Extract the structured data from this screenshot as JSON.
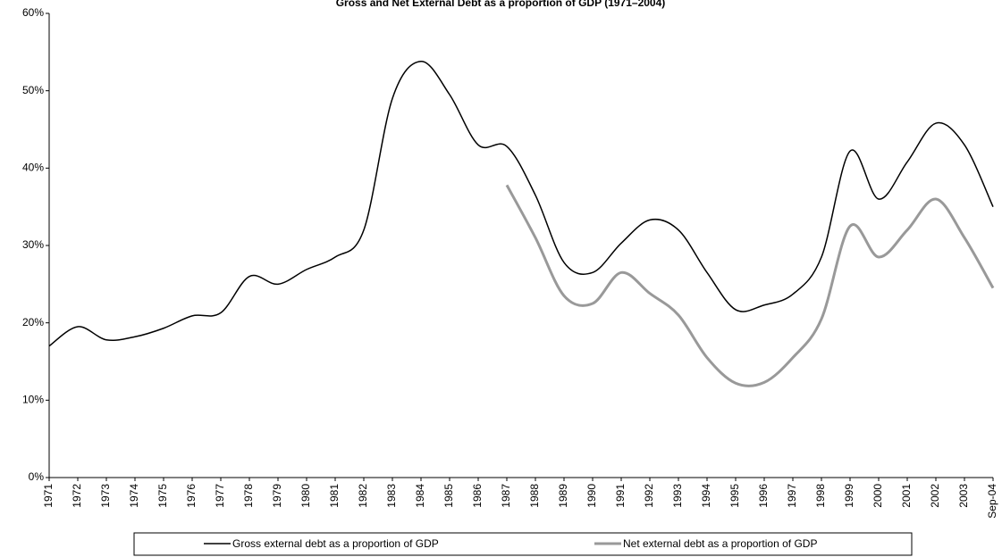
{
  "chart_data": {
    "type": "line",
    "title": "Gross and Net External Debt as a proportion of GDP (1971–2004)",
    "categories": [
      "1971",
      "1972",
      "1973",
      "1974",
      "1975",
      "1976",
      "1977",
      "1978",
      "1979",
      "1980",
      "1981",
      "1982",
      "1983",
      "1984",
      "1985",
      "1986",
      "1987",
      "1988",
      "1989",
      "1990",
      "1991",
      "1992",
      "1993",
      "1994",
      "1995",
      "1996",
      "1997",
      "1998",
      "1999",
      "2000",
      "2001",
      "2002",
      "2003",
      "Sep-04"
    ],
    "series": [
      {
        "name": "Gross external debt as a proportion of GDP",
        "color": "#000000",
        "values": [
          17.0,
          19.5,
          17.8,
          18.2,
          19.3,
          20.9,
          21.3,
          26.0,
          25.0,
          26.9,
          28.5,
          32.0,
          49.0,
          53.8,
          49.5,
          43.0,
          42.8,
          36.5,
          27.8,
          26.5,
          30.3,
          33.3,
          32.0,
          26.5,
          21.7,
          22.3,
          23.7,
          28.5,
          42.2,
          36.0,
          40.8,
          45.8,
          43.0,
          35.0
        ]
      },
      {
        "name": "Net external debt as a proportion of GDP",
        "color": "#999999",
        "values": [
          null,
          null,
          null,
          null,
          null,
          null,
          null,
          null,
          null,
          null,
          null,
          null,
          null,
          null,
          null,
          null,
          37.8,
          31.0,
          23.5,
          22.5,
          26.5,
          23.8,
          21.0,
          15.5,
          12.2,
          12.3,
          15.5,
          20.5,
          32.5,
          28.5,
          32.0,
          36.0,
          31.0,
          24.5
        ]
      }
    ],
    "ylim": [
      0,
      60
    ],
    "yticks": [
      {
        "value": 0,
        "label": "0%"
      },
      {
        "value": 10,
        "label": "10%"
      },
      {
        "value": 20,
        "label": "20%"
      },
      {
        "value": 30,
        "label": "30%"
      },
      {
        "value": 40,
        "label": "40%"
      },
      {
        "value": 50,
        "label": "50%"
      },
      {
        "value": 60,
        "label": "60%"
      }
    ],
    "grid": false
  }
}
